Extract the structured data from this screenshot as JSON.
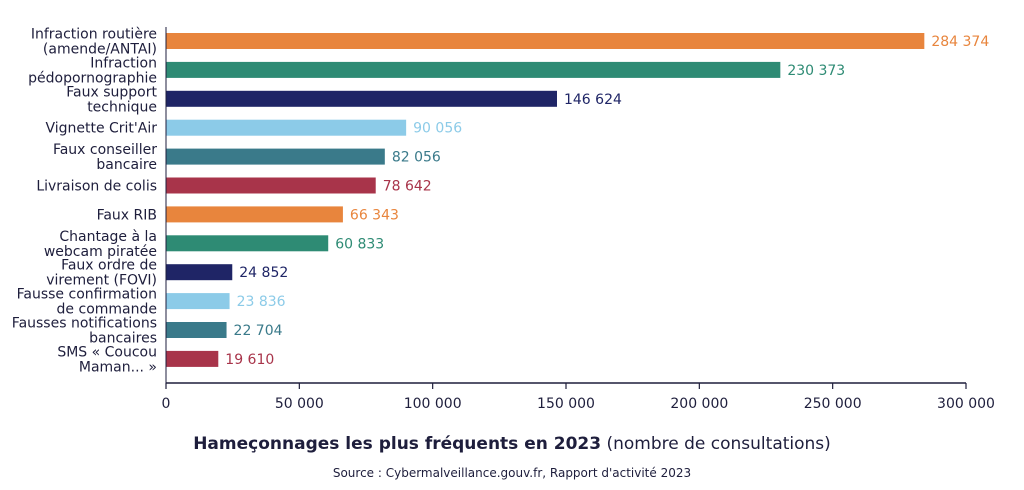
{
  "chart_data": {
    "type": "bar",
    "orientation": "horizontal",
    "title_bold": "Hameçonnages les plus fréquents en 2023",
    "title_rest": " (nombre de consultations)",
    "source": "Source : Cybermalveillance.gouv.fr, Rapport d'activité 2023",
    "xlim": [
      0,
      300000
    ],
    "grid": false,
    "ticks": [
      0,
      50000,
      100000,
      150000,
      200000,
      250000,
      300000
    ],
    "tick_labels": [
      "0",
      "50 000",
      "100 000",
      "150 000",
      "200 000",
      "250 000",
      "300 000"
    ],
    "categories": [
      {
        "label": "Infraction routière\n(amende/ANTAI)",
        "value": 284374,
        "value_label": "284 374",
        "color": "#e8853d"
      },
      {
        "label": "Infraction\npédopornographie",
        "value": 230373,
        "value_label": "230 373",
        "color": "#2e8b74"
      },
      {
        "label": "Faux support\ntechnique",
        "value": 146624,
        "value_label": "146 624",
        "color": "#1f2566"
      },
      {
        "label": "Vignette Crit'Air",
        "value": 90056,
        "value_label": "90 056",
        "color": "#8ccbe8"
      },
      {
        "label": "Faux conseiller\nbancaire",
        "value": 82056,
        "value_label": "82 056",
        "color": "#3a7a8a"
      },
      {
        "label": "Livraison de colis",
        "value": 78642,
        "value_label": "78 642",
        "color": "#a8344a"
      },
      {
        "label": "Faux RIB",
        "value": 66343,
        "value_label": "66 343",
        "color": "#e8853d"
      },
      {
        "label": "Chantage à la\nwebcam piratée",
        "value": 60833,
        "value_label": "60 833",
        "color": "#2e8b74"
      },
      {
        "label": "Faux ordre de\nvirement (FOVI)",
        "value": 24852,
        "value_label": "24 852",
        "color": "#1f2566"
      },
      {
        "label": "Fausse confirmation\nde commande",
        "value": 23836,
        "value_label": "23 836",
        "color": "#8ccbe8"
      },
      {
        "label": "Fausses notifications\nbancaires",
        "value": 22704,
        "value_label": "22 704",
        "color": "#3a7a8a"
      },
      {
        "label": "SMS « Coucou\nMaman... »",
        "value": 19610,
        "value_label": "19 610",
        "color": "#a8344a"
      }
    ]
  }
}
